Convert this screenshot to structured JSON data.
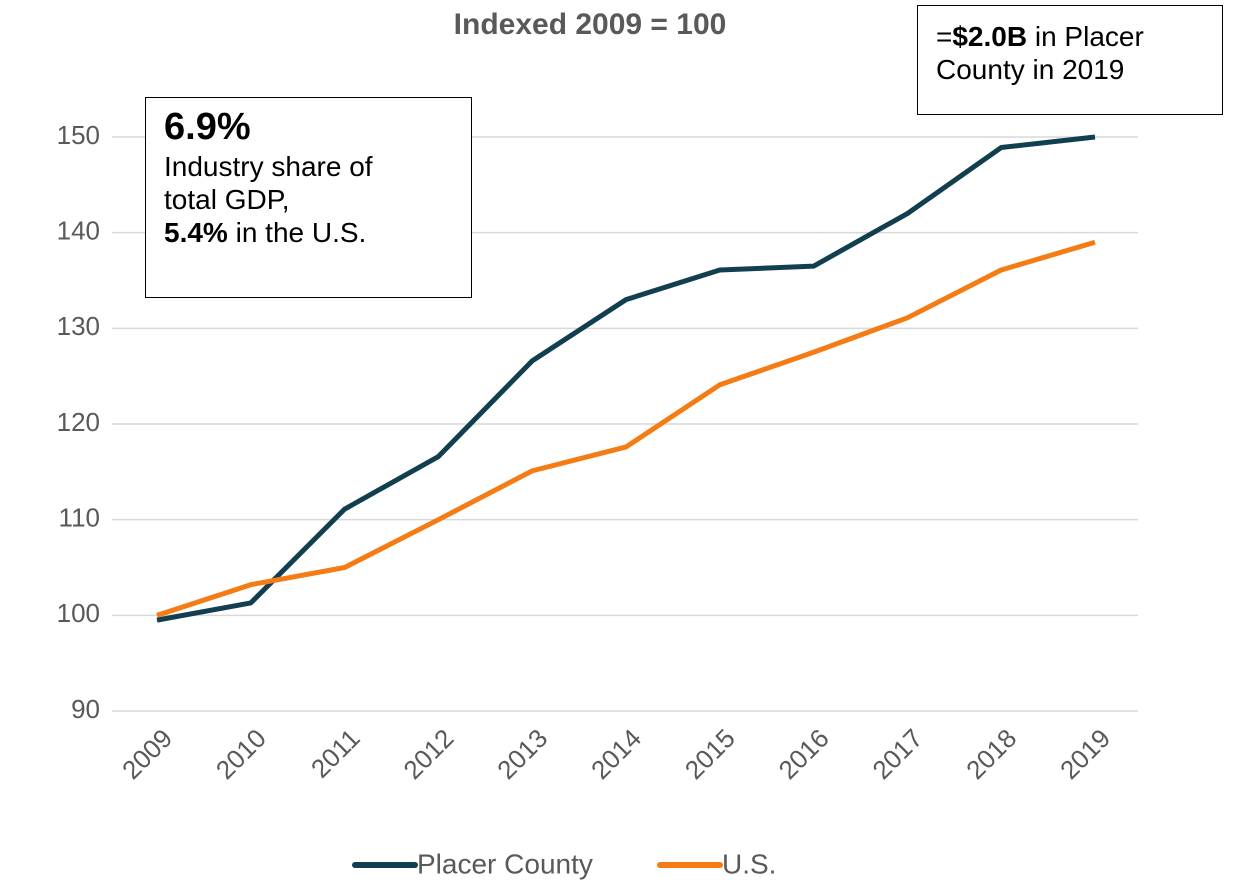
{
  "chart_data": {
    "type": "line",
    "title": "Indexed 2009 = 100",
    "categories": [
      "2009",
      "2010",
      "2011",
      "2012",
      "2013",
      "2014",
      "2015",
      "2016",
      "2017",
      "2018",
      "2019"
    ],
    "series": [
      {
        "name": "Placer County",
        "color": "#123f4f",
        "values": [
          99.5,
          101.3,
          111.1,
          116.6,
          126.6,
          133,
          136.1,
          136.5,
          142,
          148.9,
          150
        ]
      },
      {
        "name": "U.S.",
        "color": "#f57c14",
        "values": [
          100,
          103.2,
          105,
          110,
          115.1,
          117.6,
          124.1,
          127.5,
          131.1,
          136.1,
          139
        ]
      }
    ],
    "ylim": [
      90,
      150
    ],
    "yticks": [
      90,
      100,
      110,
      120,
      130,
      140,
      150
    ],
    "grid": true,
    "legend": "bottom",
    "annotations": [
      {
        "lines": [
          [
            "6.9%"
          ],
          [
            "Industry share of"
          ],
          [
            "total GDP,"
          ],
          [
            "5.4%",
            "in the U.S."
          ]
        ]
      },
      {
        "lines": [
          [
            "=",
            "$2.0B",
            "in Placer"
          ],
          [
            "County in 2019"
          ]
        ]
      }
    ]
  }
}
